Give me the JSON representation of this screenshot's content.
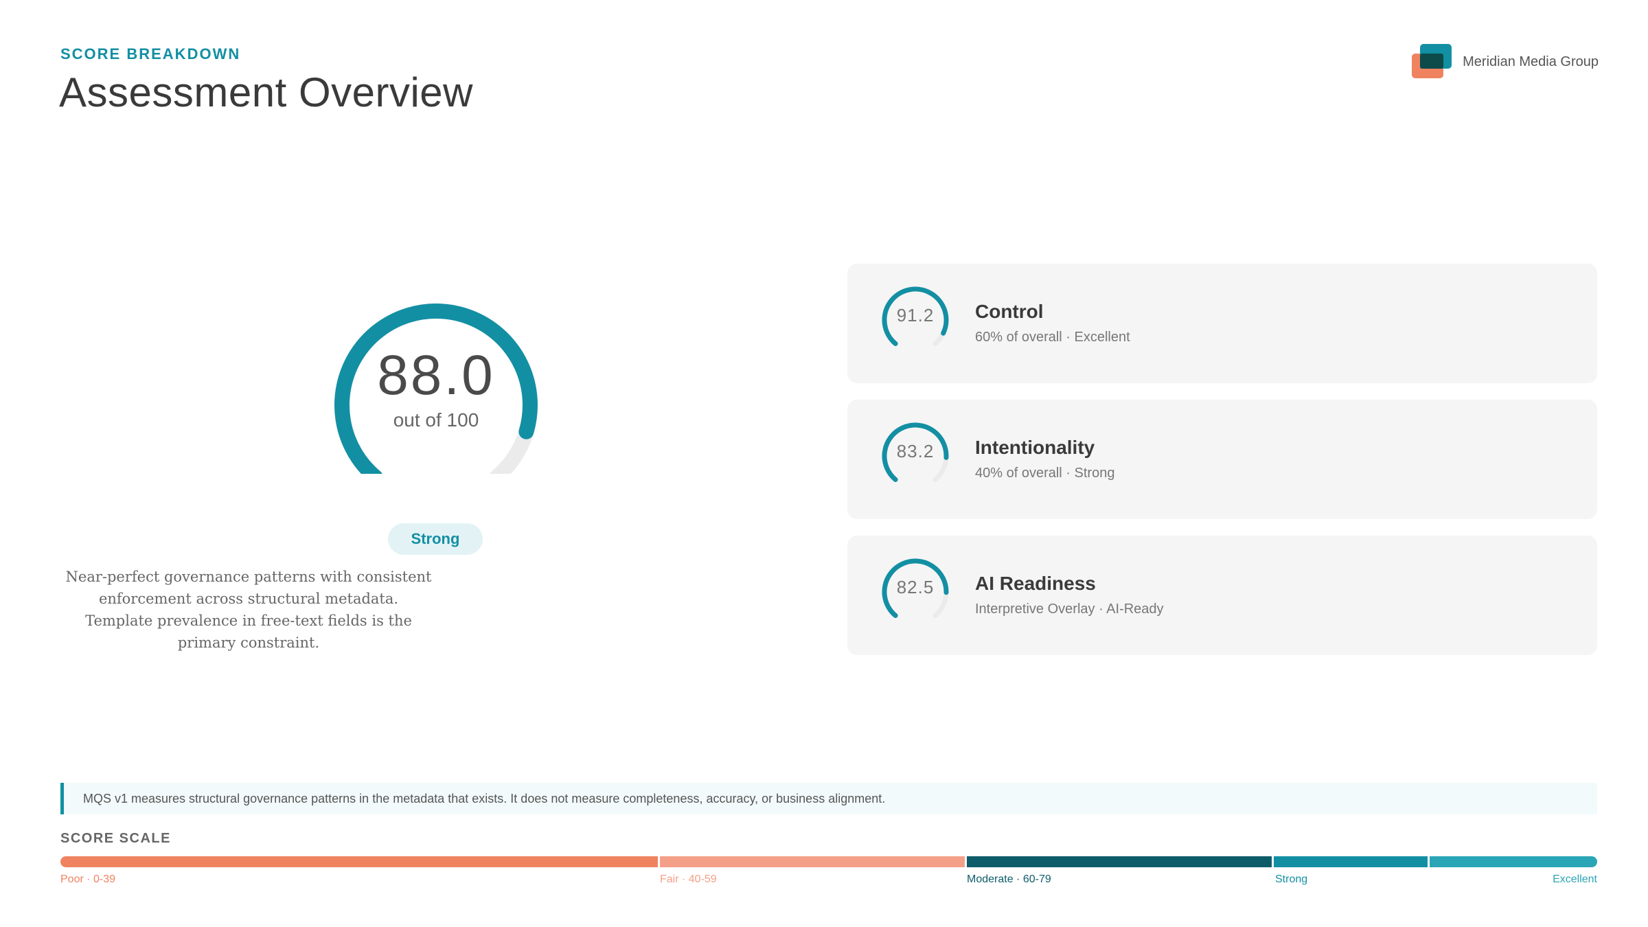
{
  "header": {
    "eyebrow": "SCORE BREAKDOWN",
    "title": "Assessment Overview",
    "brand_name": "Meridian Media Group",
    "brand_icon": "overlapping-squares-logo"
  },
  "overall": {
    "score": "88.0",
    "score_value": 88.0,
    "max": 100,
    "sub": "out of 100",
    "badge": "Strong",
    "description": "Near-perfect governance patterns with consistent enforcement across structural metadata. Template prevalence in free-text fields is the primary constraint."
  },
  "cards": [
    {
      "value": "91.2",
      "score_value": 91.2,
      "title": "Control",
      "subtitle": "60% of overall · Excellent"
    },
    {
      "value": "83.2",
      "score_value": 83.2,
      "title": "Intentionality",
      "subtitle": "40% of overall · Strong"
    },
    {
      "value": "82.5",
      "score_value": 82.5,
      "title": "AI Readiness",
      "subtitle": "Interpretive Overlay · AI-Ready"
    }
  ],
  "note": "MQS v1 measures structural governance patterns in the metadata that exists. It does not measure completeness, accuracy, or business alignment.",
  "scale": {
    "label": "SCORE SCALE",
    "segments": [
      {
        "label": "Poor · 0-39",
        "color": "#ef8360"
      },
      {
        "label": "Fair · 40-59",
        "color": "#f4a088"
      },
      {
        "label": "Moderate · 60-79",
        "color": "#0d5c6a"
      },
      {
        "label": "Strong",
        "color": "#138fa3"
      },
      {
        "label": "Excellent",
        "color": "#2aa5b5"
      }
    ]
  },
  "colors": {
    "accent": "#138fa3",
    "track": "#ebebeb"
  }
}
